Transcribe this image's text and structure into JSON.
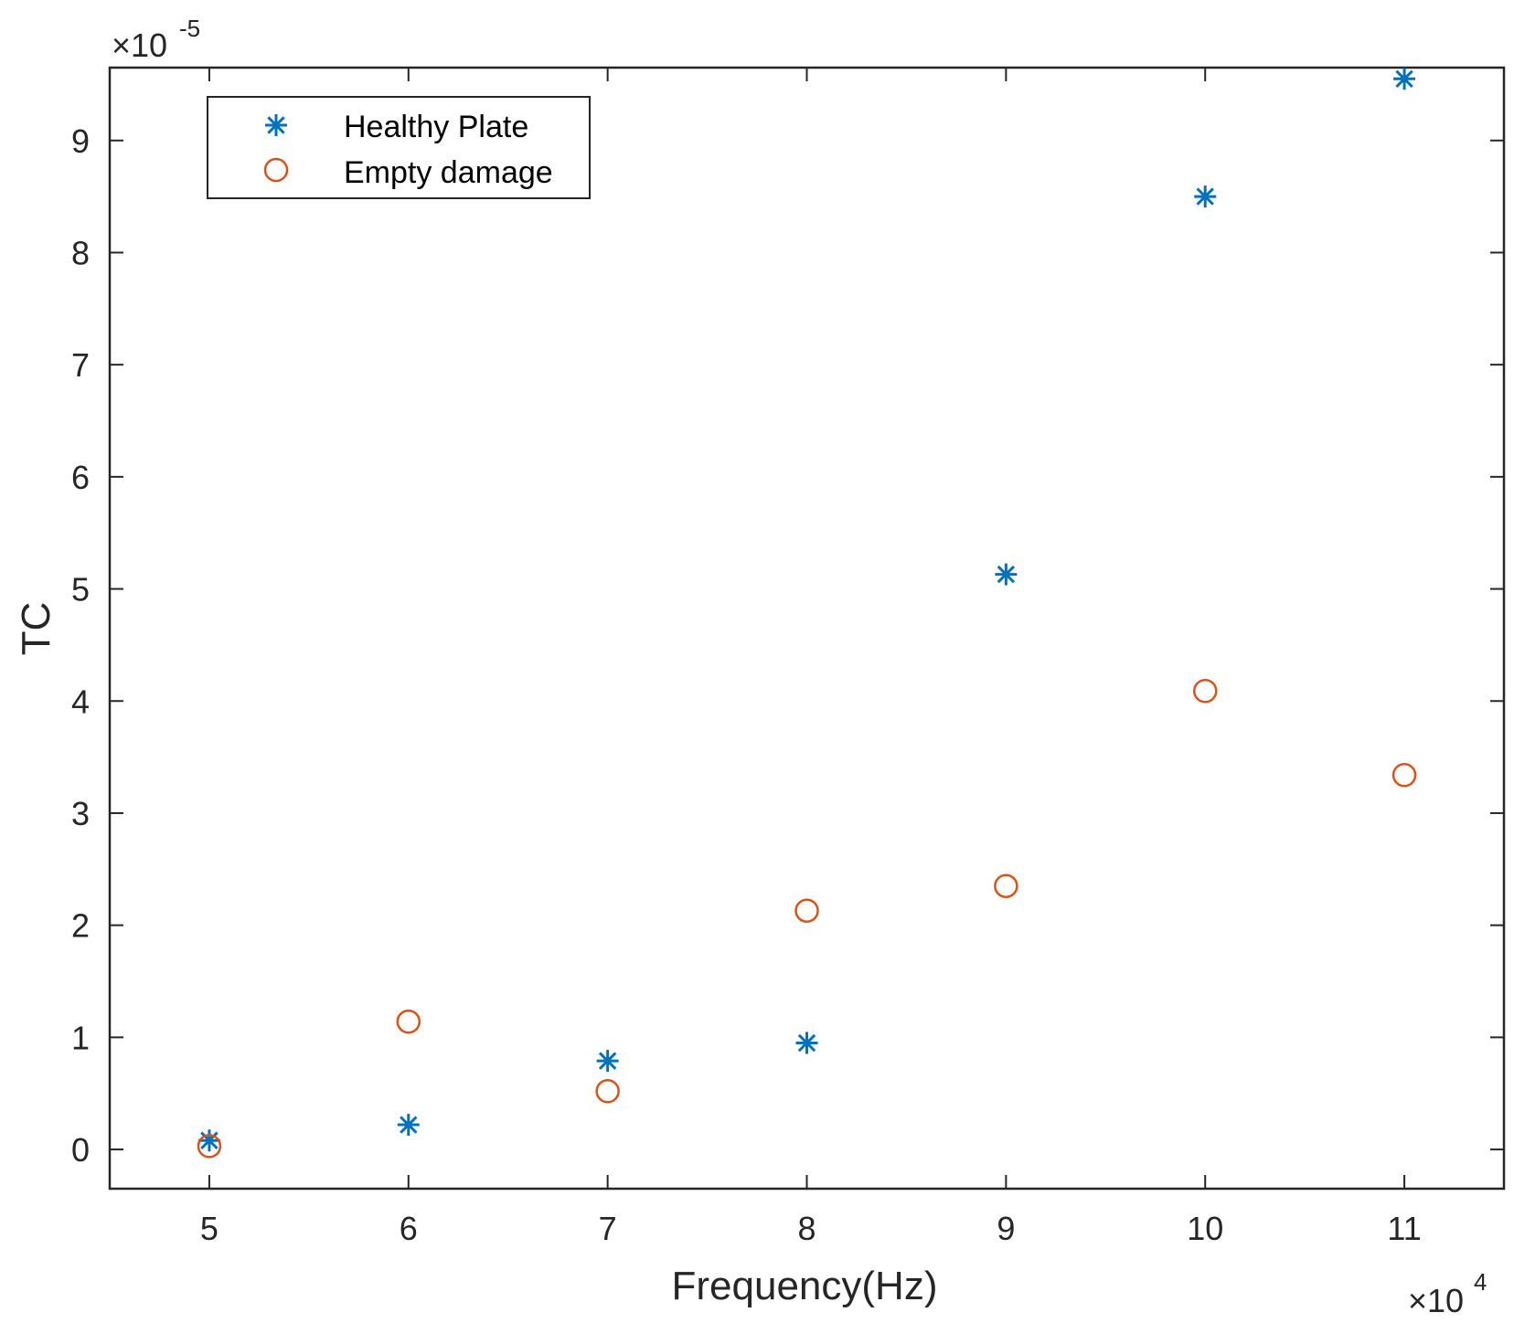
{
  "chart_data": {
    "type": "scatter",
    "xlabel": "Frequency(Hz)",
    "ylabel": "TC",
    "x_exponent": {
      "base": "×10",
      "power": "4"
    },
    "y_exponent": {
      "base": "×10",
      "power": "-5"
    },
    "xlim": [
      4.5,
      11.5
    ],
    "ylim": [
      -0.35,
      9.65
    ],
    "xticks": [
      5,
      6,
      7,
      8,
      9,
      10,
      11
    ],
    "yticks": [
      0,
      1,
      2,
      3,
      4,
      5,
      6,
      7,
      8,
      9
    ],
    "x": [
      5,
      6,
      7,
      8,
      9,
      10,
      11
    ],
    "series": [
      {
        "name": "Healthy Plate",
        "marker": "asterisk",
        "color": "#0072BD",
        "values": [
          0.08,
          0.22,
          0.79,
          0.95,
          5.13,
          8.5,
          9.55
        ]
      },
      {
        "name": "Empty damage",
        "marker": "circle",
        "color": "#D95319",
        "values": [
          0.03,
          1.14,
          0.52,
          2.13,
          2.35,
          4.09,
          3.34
        ]
      }
    ],
    "legend_position": "top-left",
    "grid": false
  }
}
